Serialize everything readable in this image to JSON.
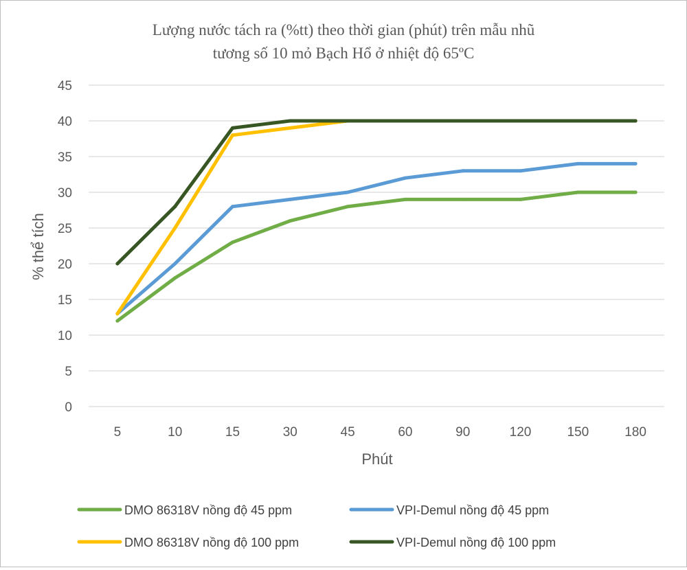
{
  "chart_data": {
    "type": "line",
    "title_lines": [
      "Lượng nước tách ra (%tt) theo thời gian (phút) trên mẫu nhũ",
      "tương số 10 mỏ Bạch Hổ ở nhiệt độ 65ºC"
    ],
    "xlabel": "Phút",
    "ylabel": "% thể tích",
    "categories": [
      "5",
      "10",
      "15",
      "30",
      "45",
      "60",
      "90",
      "120",
      "150",
      "180"
    ],
    "ylim": [
      0,
      45
    ],
    "yticks": [
      0,
      5,
      10,
      15,
      20,
      25,
      30,
      35,
      40,
      45
    ],
    "grid": true,
    "legend_position": "bottom",
    "series": [
      {
        "name": "DMO 86318V nồng độ 45 ppm",
        "color": "#70ad47",
        "values": [
          12,
          18,
          23,
          26,
          28,
          29,
          29,
          29,
          30,
          30
        ]
      },
      {
        "name": "VPI-Demul nồng độ 45 ppm",
        "color": "#5b9bd5",
        "values": [
          13,
          20,
          28,
          29,
          30,
          32,
          33,
          33,
          34,
          34
        ]
      },
      {
        "name": "DMO 86318V nồng độ 100 ppm",
        "color": "#ffc000",
        "values": [
          13,
          25,
          38,
          39,
          40,
          40,
          40,
          40,
          40,
          40
        ]
      },
      {
        "name": "VPI-Demul nồng độ 100 ppm",
        "color": "#375623",
        "values": [
          20,
          28,
          39,
          40,
          40,
          40,
          40,
          40,
          40,
          40
        ]
      }
    ]
  }
}
